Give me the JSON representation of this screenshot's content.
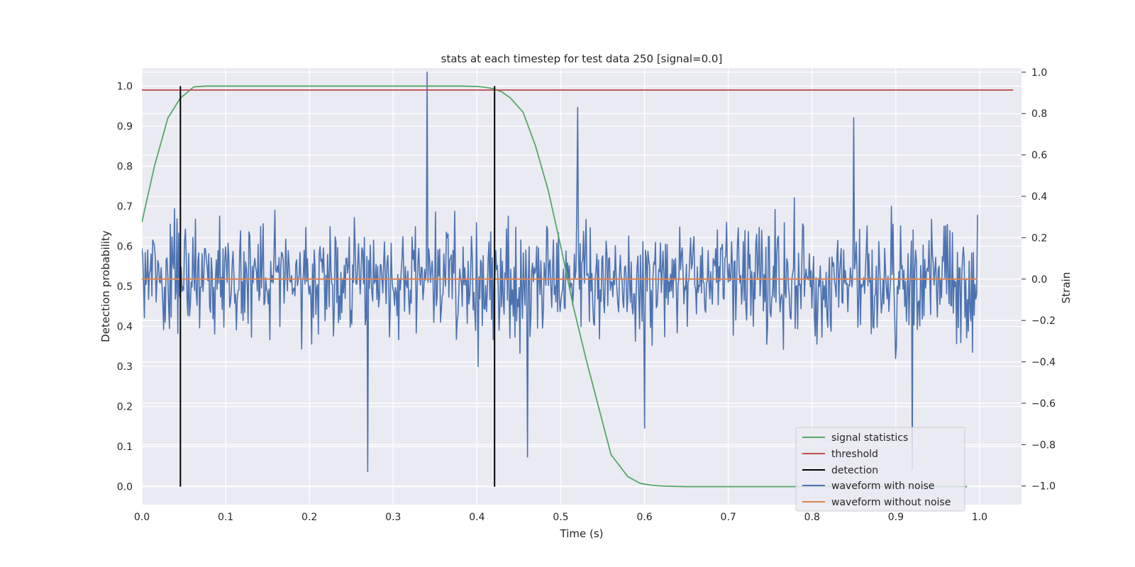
{
  "chart_data": {
    "type": "line",
    "title": "stats at each timestep for test data 250 [signal=0.0]",
    "xlabel": "Time (s)",
    "ylabel": "Detection probability",
    "y2label": "Strain",
    "xlim": [
      0.0,
      1.05
    ],
    "ylim": [
      -0.045,
      1.045
    ],
    "y2lim": [
      -1.09,
      1.02
    ],
    "x_ticks": [
      "0.0",
      "0.1",
      "0.2",
      "0.3",
      "0.4",
      "0.5",
      "0.6",
      "0.7",
      "0.8",
      "0.9",
      "1.0"
    ],
    "y_ticks": [
      "0.0",
      "0.1",
      "0.2",
      "0.3",
      "0.4",
      "0.5",
      "0.6",
      "0.7",
      "0.8",
      "0.9",
      "1.0"
    ],
    "y2_ticks": [
      "−1.0",
      "−0.8",
      "−0.6",
      "−0.4",
      "−0.2",
      "0.0",
      "0.2",
      "0.4",
      "0.6",
      "0.8",
      "1.0"
    ],
    "grid": true,
    "legend_position": "lower-right",
    "colors": {
      "background": "#eaeaf2",
      "grid": "#ffffff",
      "signal": "#55a868",
      "threshold": "#c44e52",
      "detection": "#000000",
      "noisy": "#4c72b0",
      "clean": "#dd8452"
    },
    "series": [
      {
        "name": "signal statistics",
        "axis": "left",
        "x": [
          0.0,
          0.015,
          0.031,
          0.046,
          0.062,
          0.077,
          0.093,
          0.108,
          0.124,
          0.2,
          0.3,
          0.38,
          0.4,
          0.41,
          0.42,
          0.43,
          0.44,
          0.455,
          0.47,
          0.485,
          0.5,
          0.515,
          0.53,
          0.545,
          0.56,
          0.58,
          0.595,
          0.61,
          0.625,
          0.65,
          0.7,
          0.8,
          0.9,
          0.985
        ],
        "y": [
          0.66,
          0.8,
          0.92,
          0.97,
          0.998,
          1.0,
          1.0,
          1.0,
          1.0,
          1.0,
          1.0,
          1.0,
          0.999,
          0.997,
          0.993,
          0.985,
          0.97,
          0.935,
          0.85,
          0.74,
          0.6,
          0.45,
          0.32,
          0.2,
          0.08,
          0.025,
          0.008,
          0.003,
          0.001,
          0.0,
          0.0,
          0.0,
          0.0,
          0.0
        ]
      },
      {
        "name": "threshold",
        "axis": "left",
        "x": [
          0.0,
          1.04
        ],
        "y": [
          0.99,
          0.99
        ]
      },
      {
        "name": "detection",
        "axis": "left",
        "x": [
          0.046,
          0.421
        ],
        "y": [
          1.0,
          1.0
        ]
      },
      {
        "name": "waveform with noise",
        "axis": "right",
        "x_range": [
          0.0,
          0.9975
        ],
        "n_samples": 1000,
        "seed": 250,
        "sigma": 0.28,
        "peaks": [
          [
            0.34,
            1.0
          ],
          [
            0.27,
            -0.93
          ],
          [
            0.46,
            -0.86
          ],
          [
            0.52,
            0.83
          ],
          [
            0.6,
            -0.72
          ],
          [
            0.85,
            0.78
          ],
          [
            0.92,
            -0.92
          ]
        ]
      },
      {
        "name": "waveform without noise",
        "axis": "right",
        "x": [
          0.0,
          0.9975
        ],
        "y": [
          0.0,
          0.0
        ]
      }
    ]
  }
}
